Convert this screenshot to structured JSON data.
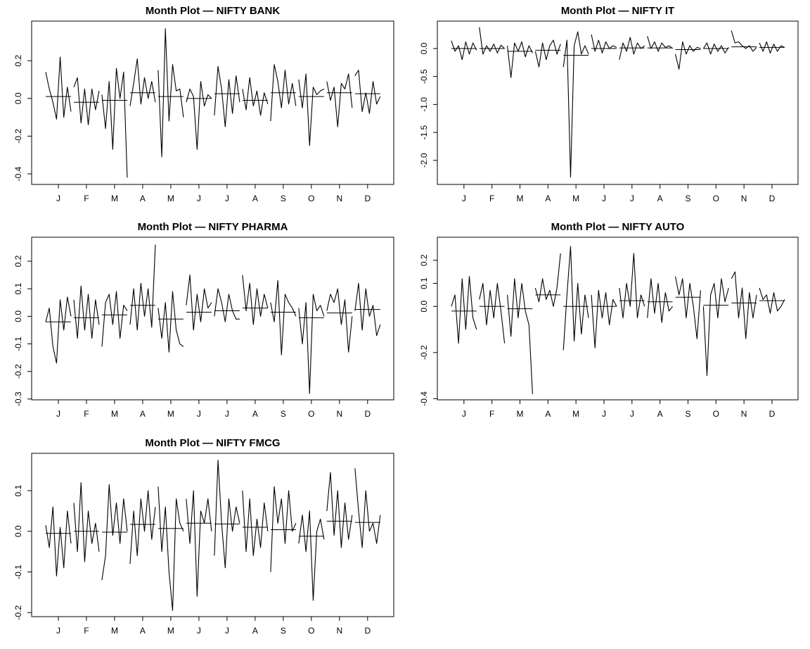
{
  "chart_data": [
    {
      "type": "monthplot",
      "title": "Month Plot — NIFTY BANK",
      "color": "#000000",
      "categories": [
        "J",
        "F",
        "M",
        "A",
        "M",
        "J",
        "J",
        "A",
        "S",
        "O",
        "N",
        "D"
      ],
      "values": [
        [
          0.14,
          0.05,
          -0.02,
          -0.11,
          0.22,
          -0.1,
          0.06,
          -0.07
        ],
        [
          0.06,
          0.11,
          -0.13,
          0.05,
          -0.14,
          0.05,
          -0.06,
          0.04
        ],
        [
          0.02,
          -0.16,
          0.09,
          -0.27,
          0.16,
          0.0,
          0.14,
          -0.42
        ],
        [
          -0.04,
          0.08,
          0.21,
          -0.03,
          0.11,
          0.0,
          0.09,
          -0.02
        ],
        [
          0.15,
          -0.31,
          0.37,
          -0.12,
          0.18,
          0.04,
          0.05,
          -0.1
        ],
        [
          -0.02,
          0.05,
          0.01,
          -0.27,
          0.09,
          -0.04,
          0.02,
          0.0
        ],
        [
          -0.09,
          0.17,
          0.05,
          -0.15,
          0.1,
          -0.08,
          0.12,
          -0.02
        ],
        [
          0.05,
          -0.06,
          0.11,
          -0.04,
          0.04,
          -0.09,
          0.03,
          -0.03
        ],
        [
          -0.12,
          0.18,
          0.09,
          -0.05,
          0.15,
          -0.03,
          0.08,
          -0.04
        ],
        [
          0.1,
          -0.05,
          0.13,
          -0.25,
          0.06,
          0.02,
          0.04,
          0.05
        ],
        [
          0.09,
          -0.01,
          0.06,
          -0.15,
          0.08,
          0.05,
          0.13,
          -0.05
        ],
        [
          0.12,
          0.15,
          -0.07,
          0.03,
          -0.08,
          0.09,
          -0.03,
          0.01
        ]
      ],
      "means": [
        0.01,
        -0.02,
        -0.01,
        0.03,
        0.01,
        0.0,
        0.025,
        -0.01,
        0.03,
        0.01,
        0.03,
        0.025
      ],
      "ylim": [
        -0.456,
        0.41
      ],
      "yticks": [
        0.2,
        {
          "value": 0,
          "label": "0.0"
        },
        -0.2,
        -0.4
      ]
    },
    {
      "type": "monthplot",
      "title": "Month Plot — NIFTY IT",
      "color": "#000000",
      "categories": [
        "J",
        "F",
        "M",
        "A",
        "M",
        "J",
        "J",
        "A",
        "S",
        "O",
        "N",
        "D"
      ],
      "values": [
        [
          0.14,
          -0.05,
          0.05,
          -0.2,
          0.12,
          -0.1,
          0.1,
          -0.03
        ],
        [
          0.38,
          -0.1,
          0.05,
          -0.05,
          0.08,
          -0.08,
          0.06,
          0.0
        ],
        [
          0.05,
          -0.52,
          0.1,
          -0.05,
          0.12,
          -0.15,
          0.05,
          -0.08
        ],
        [
          -0.05,
          -0.33,
          0.1,
          -0.2,
          0.05,
          0.15,
          -0.1,
          0.08
        ],
        [
          -0.33,
          0.15,
          -2.3,
          0.05,
          0.3,
          -0.1,
          0.05,
          -0.1
        ],
        [
          0.25,
          -0.05,
          0.15,
          -0.08,
          0.12,
          0.0,
          0.05,
          0.02
        ],
        [
          -0.2,
          0.1,
          -0.05,
          0.2,
          -0.1,
          0.1,
          0.0,
          0.05
        ],
        [
          0.22,
          0.0,
          0.12,
          -0.05,
          0.1,
          0.02,
          0.05,
          0.0
        ],
        [
          -0.1,
          -0.37,
          0.12,
          -0.1,
          0.05,
          -0.05,
          0.02,
          0.0
        ],
        [
          0.0,
          0.1,
          -0.1,
          0.08,
          -0.05,
          0.05,
          -0.08,
          0.02
        ],
        [
          0.32,
          0.1,
          0.12,
          0.05,
          0.0,
          0.05,
          -0.05,
          0.02
        ],
        [
          0.1,
          -0.05,
          0.12,
          -0.08,
          0.08,
          -0.05,
          0.05,
          0.02
        ]
      ],
      "means": [
        0.0,
        0.0,
        -0.05,
        -0.03,
        -0.12,
        0.0,
        0.01,
        0.01,
        -0.02,
        0.0,
        0.03,
        0.02
      ],
      "ylim": [
        -2.43,
        0.49
      ],
      "yticks": [
        {
          "value": 0,
          "label": "0.0"
        },
        -0.5,
        {
          "value": -1,
          "label": "-1.0"
        },
        -1.5,
        {
          "value": -2,
          "label": "-2.0"
        }
      ]
    },
    {
      "type": "monthplot",
      "title": "Month Plot — NIFTY PHARMA",
      "color": "#000000",
      "categories": [
        "J",
        "F",
        "M",
        "A",
        "M",
        "J",
        "J",
        "A",
        "S",
        "O",
        "N",
        "D"
      ],
      "values": [
        [
          -0.02,
          0.03,
          -0.11,
          -0.17,
          0.06,
          -0.05,
          0.07,
          0.0
        ],
        [
          0.06,
          -0.08,
          0.11,
          -0.05,
          0.08,
          -0.08,
          0.06,
          -0.03
        ],
        [
          -0.11,
          0.05,
          0.08,
          -0.03,
          0.09,
          -0.08,
          0.04,
          0.02
        ],
        [
          -0.03,
          0.1,
          -0.05,
          0.12,
          0.0,
          0.1,
          -0.04,
          0.26
        ],
        [
          0.03,
          -0.08,
          0.05,
          -0.13,
          0.09,
          -0.05,
          -0.1,
          -0.11
        ],
        [
          0.04,
          0.15,
          -0.05,
          0.08,
          -0.02,
          0.1,
          0.03,
          0.05
        ],
        [
          0.0,
          0.1,
          0.05,
          -0.02,
          0.08,
          0.02,
          -0.01,
          -0.01
        ],
        [
          0.15,
          0.02,
          0.12,
          -0.03,
          0.1,
          0.0,
          0.08,
          0.03
        ],
        [
          0.05,
          -0.02,
          0.13,
          -0.14,
          0.08,
          0.05,
          0.03,
          0.0
        ],
        [
          0.03,
          -0.1,
          0.05,
          -0.28,
          0.08,
          0.02,
          0.04,
          0.0
        ],
        [
          0.02,
          0.08,
          0.05,
          0.1,
          -0.03,
          0.06,
          -0.13,
          0.0
        ],
        [
          0.02,
          0.12,
          -0.05,
          0.1,
          0.0,
          0.04,
          -0.07,
          -0.03
        ]
      ],
      "means": [
        -0.02,
        -0.005,
        0.005,
        0.04,
        -0.01,
        0.015,
        0.02,
        0.03,
        0.015,
        -0.005,
        0.012,
        0.025
      ],
      "ylim": [
        -0.303,
        0.287
      ],
      "yticks": [
        0.2,
        0.1,
        {
          "value": 0,
          "label": "0.0"
        },
        -0.1,
        -0.2,
        -0.3
      ]
    },
    {
      "type": "monthplot",
      "title": "Month Plot — NIFTY AUTO",
      "color": "#000000",
      "categories": [
        "J",
        "F",
        "M",
        "A",
        "M",
        "J",
        "J",
        "A",
        "S",
        "O",
        "N",
        "D"
      ],
      "values": [
        [
          0.0,
          0.05,
          -0.16,
          0.12,
          -0.1,
          0.13,
          -0.05,
          -0.1
        ],
        [
          0.03,
          0.1,
          -0.08,
          0.07,
          -0.05,
          0.1,
          -0.02,
          -0.16
        ],
        [
          0.05,
          -0.13,
          0.12,
          -0.05,
          0.1,
          -0.02,
          -0.08,
          -0.38
        ],
        [
          0.08,
          0.02,
          0.12,
          0.03,
          0.07,
          0.0,
          0.08,
          0.23
        ],
        [
          -0.19,
          0.05,
          0.26,
          -0.15,
          0.1,
          -0.12,
          0.05,
          -0.05
        ],
        [
          0.05,
          -0.18,
          0.07,
          -0.05,
          0.06,
          -0.08,
          0.03,
          0.0
        ],
        [
          0.08,
          -0.05,
          0.1,
          0.0,
          0.23,
          -0.05,
          0.05,
          0.0
        ],
        [
          -0.05,
          0.12,
          -0.03,
          0.1,
          -0.07,
          0.06,
          -0.02,
          0.0
        ],
        [
          0.13,
          0.05,
          0.12,
          -0.05,
          0.1,
          0.0,
          -0.14,
          0.07
        ],
        [
          0.0,
          -0.3,
          0.05,
          0.1,
          -0.05,
          0.12,
          0.02,
          0.08
        ],
        [
          0.12,
          0.15,
          -0.05,
          0.08,
          -0.14,
          0.06,
          -0.05,
          0.05
        ],
        [
          0.08,
          0.03,
          0.05,
          -0.03,
          0.06,
          -0.02,
          0.0,
          0.03
        ]
      ],
      "means": [
        -0.02,
        0.0,
        -0.01,
        0.05,
        0.0,
        0.0,
        0.025,
        0.02,
        0.04,
        0.005,
        0.015,
        0.025
      ],
      "ylim": [
        -0.405,
        0.3
      ],
      "yticks": [
        0.2,
        0.1,
        {
          "value": 0,
          "label": "0.0"
        },
        -0.2,
        -0.4
      ]
    },
    {
      "type": "monthplot",
      "title": "Month Plot — NIFTY FMCG",
      "color": "#000000",
      "categories": [
        "J",
        "F",
        "M",
        "A",
        "M",
        "J",
        "J",
        "A",
        "S",
        "O",
        "N",
        "D"
      ],
      "values": [
        [
          0.015,
          -0.04,
          0.06,
          -0.11,
          0.01,
          -0.09,
          0.05,
          -0.03
        ],
        [
          0.07,
          -0.05,
          0.12,
          -0.075,
          0.05,
          -0.03,
          0.02,
          -0.05
        ],
        [
          -0.12,
          -0.06,
          0.115,
          -0.01,
          0.07,
          -0.03,
          0.08,
          0.0
        ],
        [
          -0.08,
          0.05,
          -0.06,
          0.08,
          0.0,
          0.1,
          -0.02,
          0.06
        ],
        [
          0.11,
          -0.05,
          0.06,
          -0.1,
          -0.195,
          0.08,
          0.02,
          0.0
        ],
        [
          0.08,
          -0.03,
          0.1,
          -0.16,
          0.05,
          0.02,
          0.08,
          0.0
        ],
        [
          -0.06,
          0.175,
          0.02,
          -0.09,
          0.08,
          0.0,
          0.06,
          0.02
        ],
        [
          0.1,
          -0.05,
          0.08,
          -0.06,
          0.03,
          -0.04,
          0.07,
          0.0
        ],
        [
          -0.1,
          0.11,
          0.02,
          0.08,
          -0.03,
          0.1,
          0.0,
          0.02
        ],
        [
          -0.03,
          0.04,
          -0.05,
          0.05,
          -0.17,
          0.0,
          0.03,
          -0.02
        ],
        [
          0.05,
          0.145,
          -0.01,
          0.1,
          -0.04,
          0.07,
          -0.02,
          0.04
        ],
        [
          0.155,
          0.05,
          -0.04,
          0.1,
          0.0,
          0.02,
          -0.03,
          0.04
        ]
      ],
      "means": [
        -0.005,
        0.0,
        -0.002,
        0.017,
        0.007,
        0.02,
        0.018,
        0.01,
        0.004,
        -0.012,
        0.025,
        0.022
      ],
      "ylim": [
        -0.21,
        0.192
      ],
      "yticks": [
        0.1,
        {
          "value": 0,
          "label": "0.0"
        },
        -0.1,
        -0.2
      ]
    }
  ]
}
